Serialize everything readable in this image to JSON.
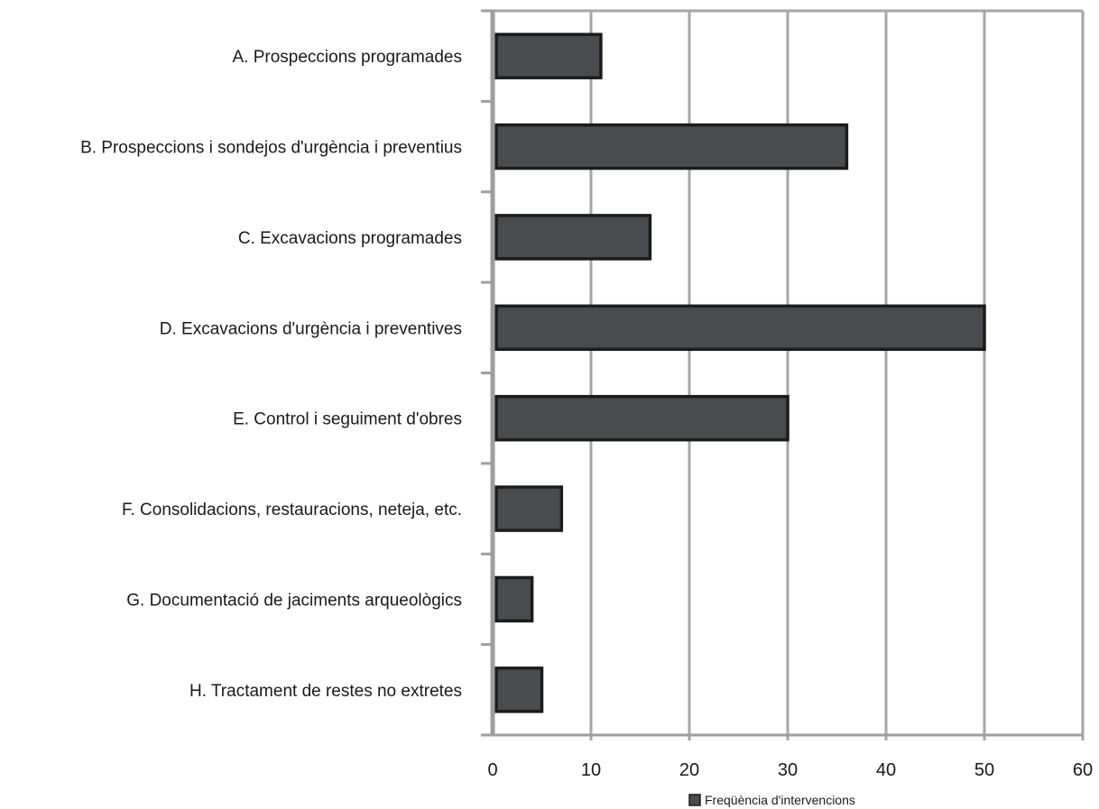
{
  "chart_data": {
    "type": "bar",
    "orientation": "horizontal",
    "categories": [
      "A. Prospeccions programades",
      "B. Prospeccions i sondejos d'urgència i preventius",
      "C. Excavacions programades",
      "D. Excavacions d'urgència i preventives",
      "E. Control i seguiment d'obres",
      "F. Consolidacions, restauracions, neteja, etc.",
      "G. Documentació de jaciments arqueològics",
      "H. Tractament de restes no extretes"
    ],
    "series": [
      {
        "name": "Freqüència d'intervencions",
        "values": [
          11,
          36,
          16,
          50,
          30,
          7,
          4,
          5
        ]
      }
    ],
    "xlim": [
      0,
      60
    ],
    "xticks": [
      "0",
      "10",
      "20",
      "30",
      "40",
      "50",
      "60"
    ],
    "grid": true,
    "legend_position": "bottom",
    "colors": {
      "bar_fill": "#4a4b4d",
      "bar_stroke": "#1c1c1c",
      "grid": "#a6a6a6",
      "axis": "#9e9e9e"
    }
  }
}
